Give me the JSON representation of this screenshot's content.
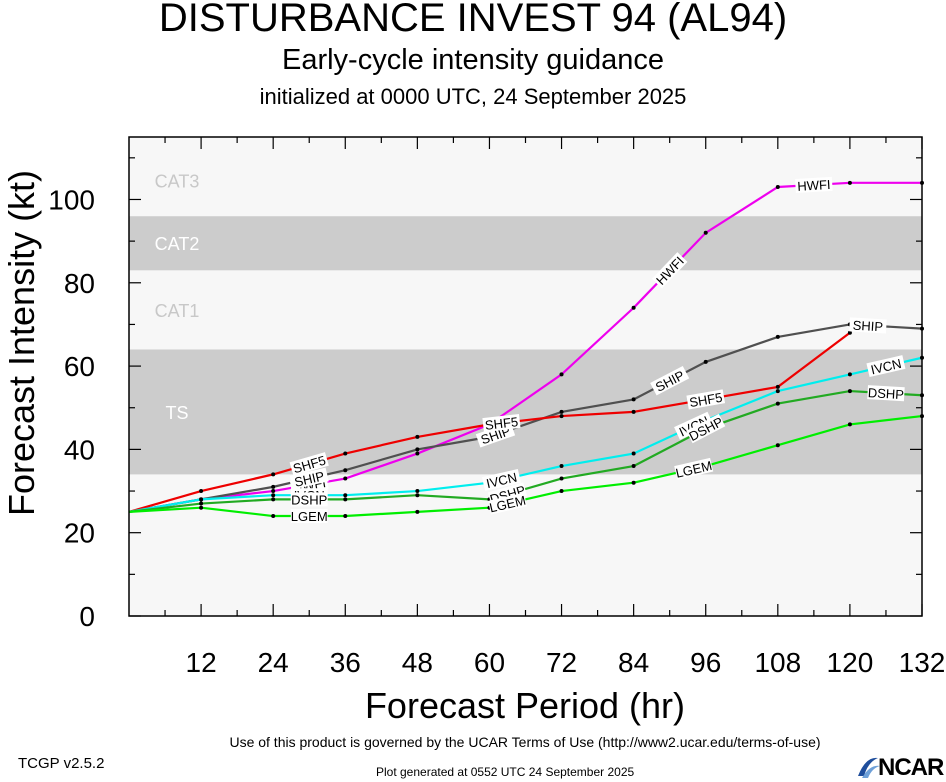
{
  "chart_data": {
    "type": "line",
    "title": "DISTURBANCE INVEST 94 (AL94)",
    "subtitle": "Early-cycle intensity guidance",
    "subtitle2": "initialized at 0000 UTC, 24 September 2025",
    "xlabel": "Forecast Period (hr)",
    "ylabel": "Forecast Intensity (kt)",
    "xlim": [
      0,
      132
    ],
    "ylim": [
      0,
      115
    ],
    "xticks": [
      12,
      24,
      36,
      48,
      60,
      72,
      84,
      96,
      108,
      120,
      132
    ],
    "yticks": [
      0,
      20,
      40,
      60,
      80,
      100
    ],
    "bands": [
      {
        "label": "TS",
        "from": 34,
        "to": 64,
        "color": "#cccccc",
        "label_color": "#ffffff"
      },
      {
        "label": "CAT1",
        "from": 64,
        "to": 83,
        "color": "#f7f7f7",
        "label_color": "#c8c8c8"
      },
      {
        "label": "CAT2",
        "from": 83,
        "to": 96,
        "color": "#cccccc",
        "label_color": "#ffffff"
      },
      {
        "label": "CAT3",
        "from": 96,
        "to": 113,
        "color": "#f7f7f7",
        "label_color": "#c8c8c8"
      }
    ],
    "series": [
      {
        "name": "HWFI",
        "color": "#ee00ee",
        "x": [
          0,
          12,
          24,
          36,
          48,
          60,
          72,
          84,
          96,
          108,
          120,
          132
        ],
        "y": [
          25,
          28,
          30,
          33,
          39,
          46,
          58,
          74,
          92,
          103,
          104,
          104
        ],
        "labels_at": [
          30,
          90,
          114
        ]
      },
      {
        "name": "SHIP",
        "color": "#505050",
        "x": [
          0,
          12,
          24,
          36,
          48,
          60,
          72,
          84,
          96,
          108,
          120,
          132
        ],
        "y": [
          25,
          28,
          31,
          35,
          40,
          43,
          49,
          52,
          61,
          67,
          70,
          69
        ],
        "labels_at": [
          30,
          61,
          90,
          123
        ]
      },
      {
        "name": "SHF5",
        "color": "#ee0000",
        "x": [
          0,
          12,
          24,
          36,
          48,
          60,
          72,
          84,
          96,
          108,
          120
        ],
        "y": [
          25,
          30,
          34,
          39,
          43,
          46,
          48,
          49,
          52,
          55,
          68
        ],
        "labels_at": [
          30,
          62,
          96
        ]
      },
      {
        "name": "IVCN",
        "color": "#00eeee",
        "x": [
          0,
          12,
          24,
          36,
          48,
          60,
          72,
          84,
          96,
          108,
          120,
          132
        ],
        "y": [
          25,
          28,
          29,
          29,
          30,
          32,
          36,
          39,
          47,
          54,
          58,
          62
        ],
        "labels_at": [
          30,
          62,
          94,
          126
        ]
      },
      {
        "name": "DSHP",
        "color": "#22aa22",
        "x": [
          0,
          12,
          24,
          36,
          48,
          60,
          72,
          84,
          96,
          108,
          120,
          132
        ],
        "y": [
          25,
          27,
          28,
          28,
          29,
          28,
          33,
          36,
          45,
          51,
          54,
          53
        ],
        "labels_at": [
          30,
          63,
          96,
          126
        ]
      },
      {
        "name": "LGEM",
        "color": "#00ee00",
        "x": [
          0,
          12,
          24,
          36,
          48,
          60,
          72,
          84,
          96,
          108,
          120,
          132
        ],
        "y": [
          25,
          26,
          24,
          24,
          25,
          26,
          30,
          32,
          36,
          41,
          46,
          48
        ],
        "labels_at": [
          30,
          63,
          94
        ]
      }
    ]
  },
  "footer": {
    "terms": "Use of this product is governed by the UCAR Terms of Use (http://www2.ucar.edu/terms-of-use)",
    "version": "TCGP v2.5.2",
    "generated": "Plot generated at 0552 UTC   24 September 2025",
    "logo": "NCAR"
  }
}
